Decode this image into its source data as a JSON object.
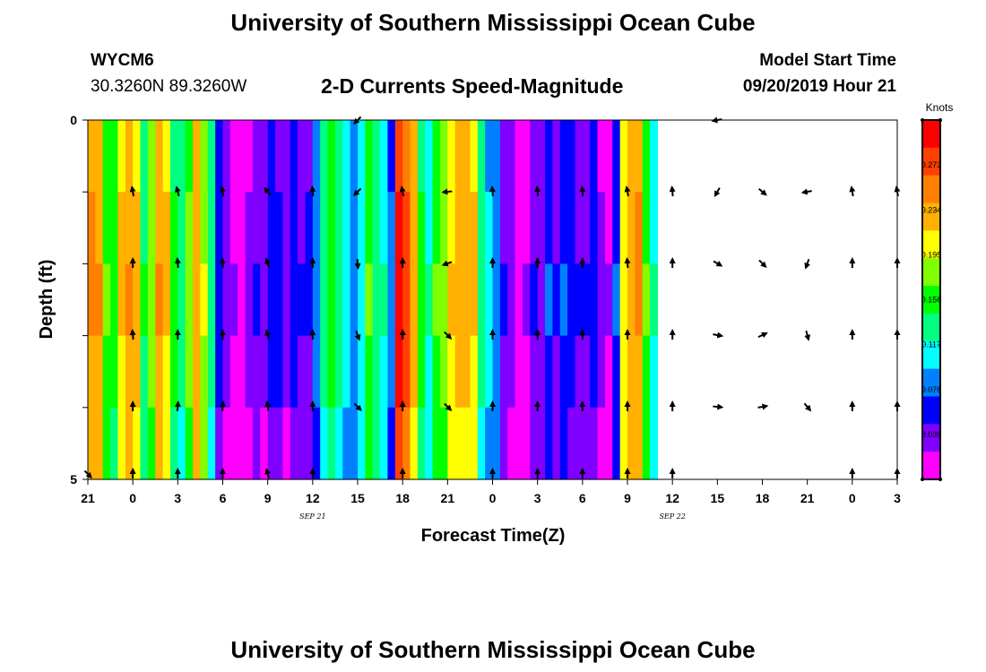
{
  "page": {
    "title_top": "University of Southern Mississippi Ocean Cube",
    "title_bottom": "University of Southern Mississippi Ocean Cube",
    "station_id": "WYCM6",
    "coordinates": "30.3260N 89.3260W",
    "chart_title": "2-D Currents Speed-Magnitude",
    "model_start_label": "Model Start Time",
    "model_start_value": "09/20/2019 Hour 21"
  },
  "chart_data": {
    "type": "heatmap",
    "title": "2-D Currents Speed-Magnitude",
    "xlabel": "Forecast Time(Z)",
    "ylabel": "Depth (ft)",
    "x_tick_labels": [
      "21",
      "0",
      "3",
      "6",
      "9",
      "12",
      "15",
      "18",
      "21",
      "0",
      "3",
      "6",
      "9",
      "12",
      "15",
      "18",
      "21",
      "0",
      "3"
    ],
    "date_labels": [
      {
        "label": "SEP 21",
        "tick_index": 5
      },
      {
        "label": "SEP 22",
        "tick_index": 13
      }
    ],
    "y_tick_labels": [
      "0",
      "5"
    ],
    "ylim": [
      0,
      5
    ],
    "colorbar": {
      "unit": "Knots",
      "tick_labels": [
        "0.273",
        "0.234",
        "0.195",
        "0.156",
        "0.117",
        "0.078",
        "0.039"
      ],
      "range": [
        0.0,
        0.312
      ],
      "colors": [
        "#ff00ff",
        "#8000ff",
        "#0000ff",
        "#0080ff",
        "#00ffff",
        "#00ff80",
        "#00ff00",
        "#80ff00",
        "#ffff00",
        "#ffb000",
        "#ff8000",
        "#ff4000",
        "#ff0000"
      ]
    },
    "depth_levels": 5,
    "columns_per_interval": 6,
    "interval_hours": 3,
    "hourly_speed_knots": [
      0.234,
      0.228,
      0.16,
      0.15,
      0.21,
      0.23,
      0.215,
      0.135,
      0.175,
      0.23,
      0.21,
      0.14,
      0.12,
      0.165,
      0.225,
      0.18,
      0.12,
      0.05,
      0.03,
      0.012,
      0.01,
      0.02,
      0.04,
      0.03,
      0.05,
      0.045,
      0.03,
      0.05,
      0.04,
      0.042,
      0.075,
      0.12,
      0.15,
      0.125,
      0.1,
      0.08,
      0.105,
      0.16,
      0.13,
      0.11,
      0.07,
      0.285,
      0.26,
      0.22,
      0.14,
      0.11,
      0.16,
      0.175,
      0.205,
      0.22,
      0.22,
      0.21,
      0.12,
      0.095,
      0.08,
      0.04,
      0.03,
      0.01,
      0.015,
      0.04,
      0.035,
      0.06,
      0.04,
      0.06,
      0.05,
      0.04,
      0.04,
      0.05,
      0.022,
      0.012,
      0.06,
      0.2,
      0.225,
      0.235,
      0.16,
      0.11
    ],
    "depth_offsets": [
      0.0,
      0.006,
      0.012,
      0.004,
      -0.008
    ],
    "arrows": [
      {
        "label": "21",
        "dirs": [
          null,
          null,
          null,
          null,
          null,
          135
        ]
      },
      {
        "label": "0",
        "dirs": [
          null,
          -10,
          0,
          -5,
          0,
          0
        ]
      },
      {
        "label": "3",
        "dirs": [
          null,
          -15,
          -5,
          0,
          5,
          0
        ]
      },
      {
        "label": "6",
        "dirs": [
          null,
          -10,
          -5,
          0,
          5,
          0
        ]
      },
      {
        "label": "9",
        "dirs": [
          null,
          -40,
          -20,
          -15,
          -10,
          -15
        ]
      },
      {
        "label": "12",
        "dirs": [
          null,
          -5,
          0,
          0,
          0,
          0
        ]
      },
      {
        "label": "15",
        "dirs": [
          -135,
          -135,
          175,
          160,
          135,
          null
        ]
      },
      {
        "label": "18",
        "dirs": [
          null,
          -10,
          0,
          0,
          0,
          0
        ]
      },
      {
        "label": "21",
        "dirs": [
          null,
          -95,
          -110,
          135,
          135,
          null
        ]
      },
      {
        "label": "0",
        "dirs": [
          null,
          -5,
          0,
          0,
          0,
          0
        ]
      },
      {
        "label": "3",
        "dirs": [
          null,
          -5,
          0,
          0,
          0,
          0
        ]
      },
      {
        "label": "6",
        "dirs": [
          null,
          -5,
          0,
          0,
          0,
          0
        ]
      },
      {
        "label": "9",
        "dirs": [
          null,
          -10,
          -5,
          0,
          0,
          0
        ]
      },
      {
        "label": "12",
        "dirs": [
          null,
          -5,
          0,
          0,
          0,
          0
        ]
      },
      {
        "label": "15",
        "dirs": [
          -100,
          -150,
          120,
          100,
          95,
          null
        ]
      },
      {
        "label": "18",
        "dirs": [
          null,
          130,
          135,
          65,
          80,
          null
        ]
      },
      {
        "label": "21",
        "dirs": [
          null,
          -100,
          -160,
          165,
          140,
          null
        ]
      },
      {
        "label": "0",
        "dirs": [
          null,
          -10,
          0,
          0,
          0,
          0
        ]
      },
      {
        "label": "3",
        "dirs": [
          null,
          -10,
          0,
          0,
          0,
          0
        ]
      }
    ]
  }
}
